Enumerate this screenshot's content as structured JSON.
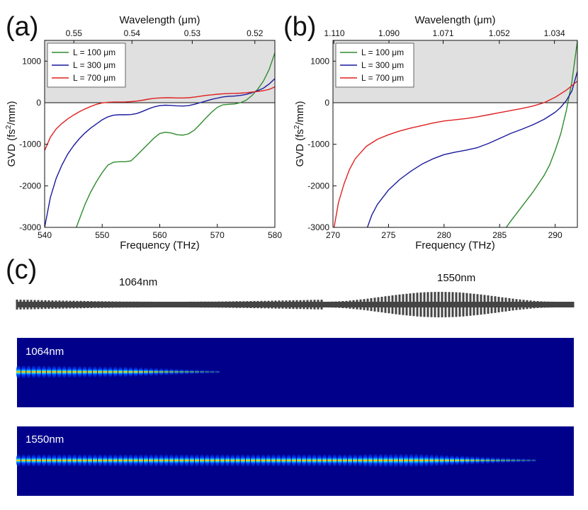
{
  "panel_letters": {
    "a": "(a)",
    "b": "(b)",
    "c": "(c)"
  },
  "chart_data": [
    {
      "type": "line",
      "panel": "(a)",
      "xlabel": "Frequency (THz)",
      "x2label": "Wavelength (μm)",
      "ylabel": "GVD (fs²/mm)",
      "xlim": [
        540,
        580
      ],
      "ylim": [
        -3000,
        1500
      ],
      "x_ticks": [
        540,
        550,
        560,
        570,
        580
      ],
      "y_ticks": [
        -3000,
        -2000,
        -1000,
        0,
        1000
      ],
      "x2_ticks": [
        {
          "label": "0.55",
          "value": 0.55
        },
        {
          "label": "0.54",
          "value": 0.54
        },
        {
          "label": "0.53",
          "value": 0.53
        },
        {
          "label": "0.52",
          "value": 0.52
        }
      ],
      "anomalous_shading": {
        "from": 0,
        "to": 1500,
        "color": "#e0e0e0"
      },
      "legend_position": "top-left",
      "series": [
        {
          "name": "L = 100 μm",
          "color": "#2e8b2e",
          "x": [
            545.5,
            547,
            548,
            549,
            550,
            551,
            552,
            553,
            554,
            555,
            556,
            557,
            558,
            559,
            560,
            561,
            562,
            563,
            564,
            565,
            566,
            567,
            568,
            569,
            570,
            571,
            572,
            573,
            574,
            575,
            576,
            577,
            578,
            579,
            580
          ],
          "y": [
            -3000,
            -2450,
            -2150,
            -1900,
            -1680,
            -1500,
            -1430,
            -1420,
            -1420,
            -1400,
            -1270,
            -1130,
            -990,
            -850,
            -740,
            -710,
            -730,
            -770,
            -780,
            -750,
            -660,
            -520,
            -370,
            -230,
            -110,
            -50,
            -40,
            -30,
            0,
            60,
            170,
            320,
            520,
            800,
            1200
          ]
        },
        {
          "name": "L = 300 μm",
          "color": "#1a1a9e",
          "x": [
            540,
            541,
            542,
            543,
            544,
            545,
            546,
            547,
            548,
            549,
            550,
            551,
            552,
            553,
            554,
            555,
            556,
            557,
            558,
            559,
            560,
            561,
            562,
            563,
            564,
            565,
            566,
            567,
            568,
            569,
            570,
            571,
            572,
            573,
            574,
            575,
            576,
            577,
            578,
            579,
            580
          ],
          "y": [
            -3000,
            -2280,
            -1820,
            -1500,
            -1240,
            -1040,
            -870,
            -730,
            -610,
            -510,
            -410,
            -340,
            -300,
            -290,
            -290,
            -285,
            -260,
            -210,
            -150,
            -100,
            -70,
            -60,
            -65,
            -75,
            -80,
            -70,
            -40,
            0,
            40,
            80,
            110,
            140,
            155,
            160,
            175,
            200,
            240,
            290,
            350,
            450,
            580
          ]
        },
        {
          "name": "L = 700 μm",
          "color": "#e02020",
          "x": [
            540,
            541,
            542,
            543,
            544,
            545,
            546,
            547,
            548,
            549,
            550,
            551,
            552,
            553,
            554,
            555,
            556,
            557,
            558,
            559,
            560,
            561,
            562,
            563,
            564,
            565,
            566,
            567,
            568,
            569,
            570,
            571,
            572,
            573,
            574,
            575,
            576,
            577,
            578,
            579,
            580
          ],
          "y": [
            -1150,
            -830,
            -630,
            -500,
            -390,
            -300,
            -220,
            -150,
            -90,
            -40,
            -5,
            10,
            15,
            15,
            18,
            25,
            40,
            60,
            85,
            105,
            115,
            120,
            120,
            115,
            115,
            120,
            135,
            155,
            175,
            190,
            205,
            215,
            220,
            225,
            230,
            240,
            255,
            270,
            290,
            320,
            380
          ]
        }
      ]
    },
    {
      "type": "line",
      "panel": "(b)",
      "xlabel": "Frequency (THz)",
      "x2label": "Wavelength (μm)",
      "ylabel": "GVD (fs²/mm)",
      "xlim": [
        270,
        292
      ],
      "ylim": [
        -3000,
        1500
      ],
      "x_ticks": [
        270,
        275,
        280,
        285,
        290
      ],
      "y_ticks": [
        -3000,
        -2000,
        -1000,
        0,
        1000
      ],
      "x2_ticks": [
        {
          "label": "1.110",
          "value": 1.11
        },
        {
          "label": "1.090",
          "value": 1.09
        },
        {
          "label": "1.071",
          "value": 1.071
        },
        {
          "label": "1.052",
          "value": 1.052
        },
        {
          "label": "1.034",
          "value": 1.034
        }
      ],
      "anomalous_shading": {
        "from": 0,
        "to": 1500,
        "color": "#e0e0e0"
      },
      "legend_position": "top-left",
      "series": [
        {
          "name": "L = 100 μm",
          "color": "#2e8b2e",
          "x": [
            285.6,
            286,
            287,
            288,
            289,
            289.5,
            290,
            290.5,
            291,
            291.5,
            292
          ],
          "y": [
            -3000,
            -2850,
            -2500,
            -2150,
            -1750,
            -1500,
            -1150,
            -750,
            -200,
            500,
            1480
          ]
        },
        {
          "name": "L = 300 μm",
          "color": "#1a1a9e",
          "x": [
            273.1,
            273.5,
            274,
            275,
            276,
            277,
            278,
            279,
            280,
            281,
            282,
            283,
            284,
            285,
            286,
            287,
            288,
            289,
            290,
            290.5,
            291,
            291.5,
            292
          ],
          "y": [
            -3000,
            -2700,
            -2450,
            -2100,
            -1850,
            -1650,
            -1480,
            -1350,
            -1250,
            -1190,
            -1140,
            -1080,
            -980,
            -860,
            -740,
            -640,
            -530,
            -400,
            -230,
            -110,
            50,
            280,
            750
          ]
        },
        {
          "name": "L = 700 μm",
          "color": "#e02020",
          "x": [
            270.1,
            270.5,
            271,
            271.5,
            272,
            273,
            274,
            275,
            276,
            277,
            278,
            279,
            280,
            281,
            282,
            283,
            284,
            285,
            286,
            287,
            288,
            289,
            290,
            291,
            292
          ],
          "y": [
            -3000,
            -2400,
            -1950,
            -1600,
            -1350,
            -1050,
            -880,
            -770,
            -680,
            -610,
            -550,
            -490,
            -440,
            -410,
            -380,
            -340,
            -290,
            -240,
            -190,
            -140,
            -80,
            0,
            130,
            300,
            520
          ]
        }
      ]
    }
  ],
  "panel_c": {
    "device_labels": [
      "1064nm",
      "1550nm"
    ],
    "maps": [
      {
        "label": "1064nm",
        "peak_zone": "start"
      },
      {
        "label": "1550nm",
        "peak_zone": "full"
      }
    ]
  }
}
